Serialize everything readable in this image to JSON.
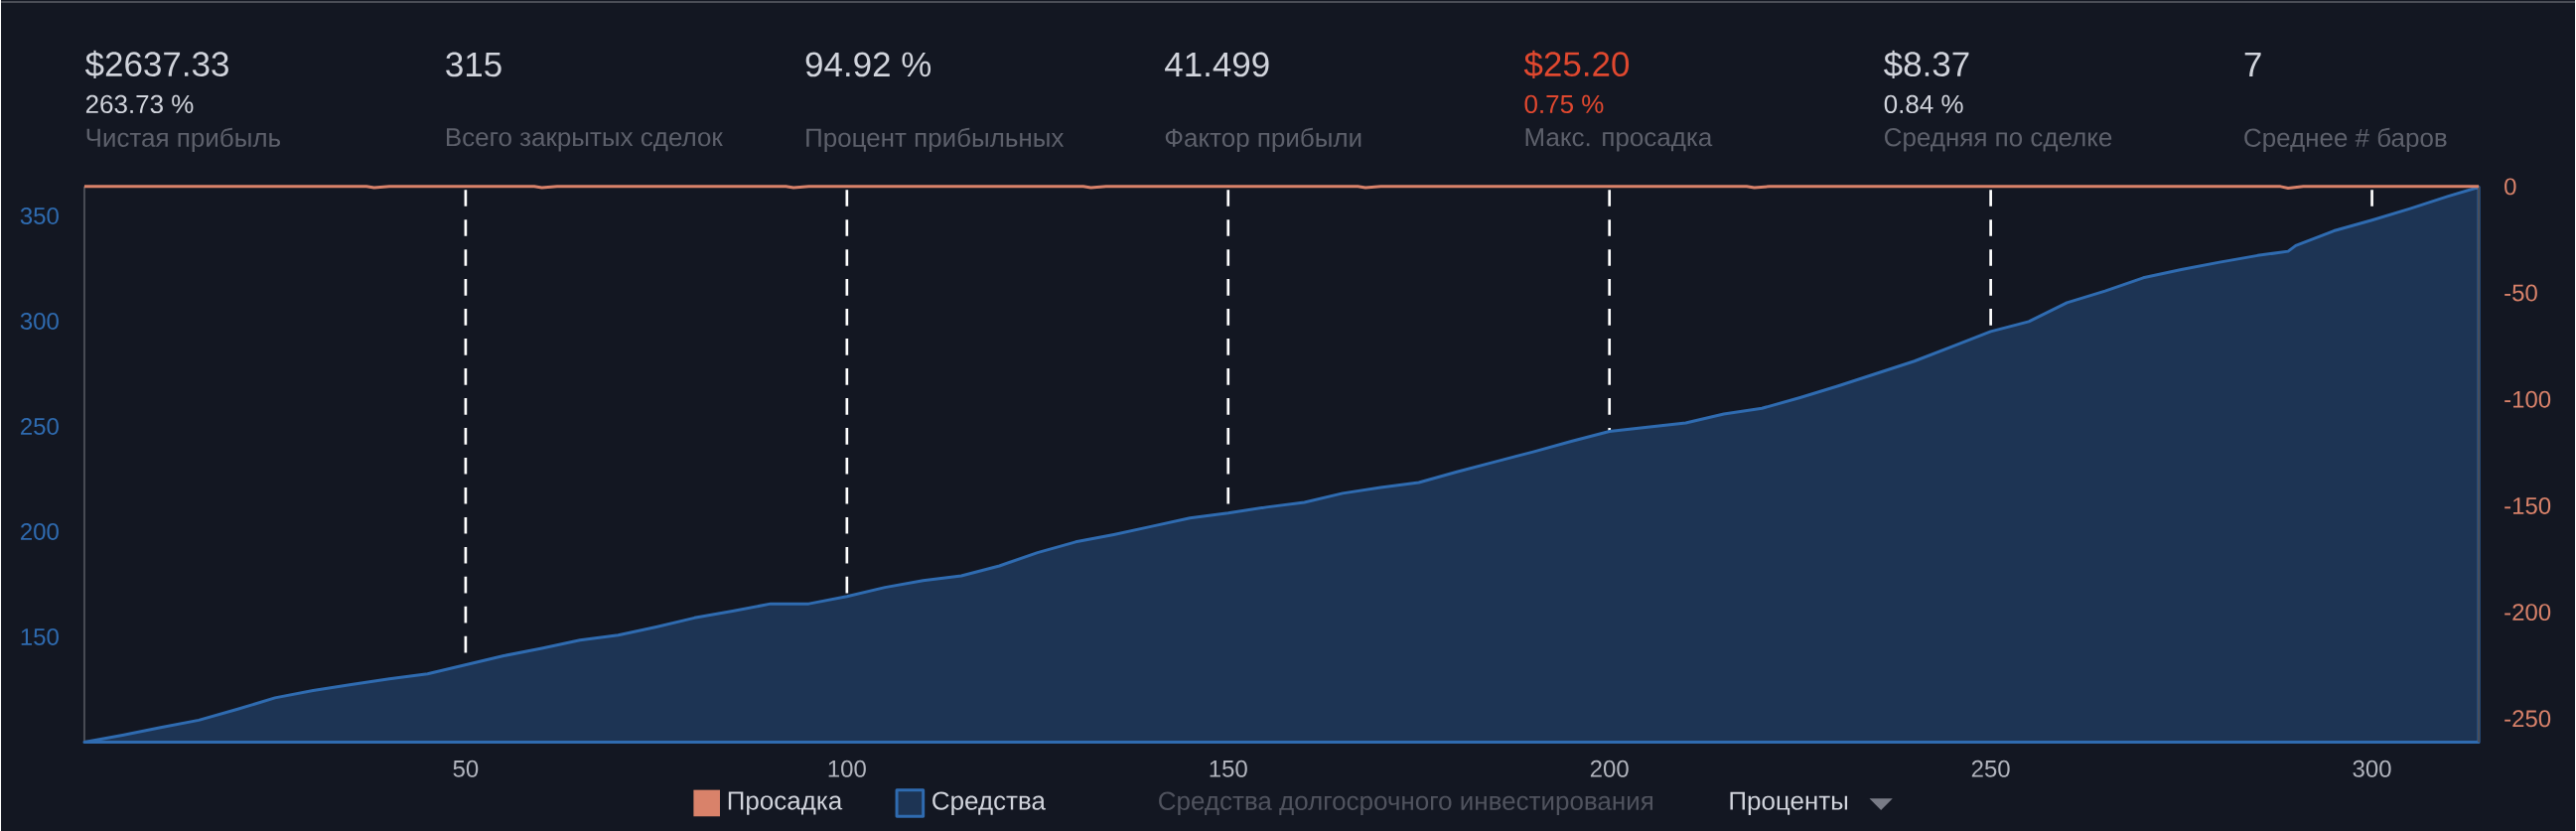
{
  "chart_data": [
    {
      "type": "other",
      "categories": [
        "Чистая прибыль",
        "Всего закрытых сделок",
        "Процент прибыльных",
        "Фактор прибыли",
        "Макс. просадка",
        "Средняя по сделке",
        "Среднее # баров"
      ],
      "series": [
        {
          "values": [
            2637.33,
            315,
            94.92,
            41.499,
            25.2,
            8.37,
            7
          ],
          "value_labels": [
            "$2637.33",
            "315",
            "94.92 %",
            "41.499",
            "$25.20",
            "$8.37",
            "7"
          ],
          "colors": [
            "#d1d4dc",
            "#d1d4dc",
            "#d1d4dc",
            "#d1d4dc",
            "#e0482f",
            "#d1d4dc",
            "#d1d4dc"
          ]
        },
        {
          "values": [
            263.73,
            null,
            null,
            null,
            0.75,
            0.84,
            null
          ],
          "value_labels": [
            "263.73 %",
            null,
            null,
            null,
            "0.75 %",
            "0.84 %",
            null
          ],
          "colors": [
            "#d1d4dc",
            null,
            null,
            null,
            "#e0482f",
            "#d1d4dc",
            null
          ]
        }
      ]
    },
    {
      "type": "area",
      "xlim": [
        0,
        314
      ],
      "xticks": [
        50,
        100,
        150,
        200,
        250,
        300
      ],
      "ylim": [
        100,
        364
      ],
      "yticks": [
        150,
        200,
        250,
        300,
        350
      ],
      "y2lim": [
        -261,
        0
      ],
      "y2ticks": [
        0,
        -50,
        -100,
        -150,
        -200,
        -250
      ],
      "grid": "x",
      "legend": "bottom",
      "annotations": [
        "Средства долгосрочного инвестирования",
        "Проценты"
      ],
      "series": [
        {
          "name": "Просадка",
          "type": "line",
          "axis": "y2",
          "color": "#d9826a",
          "x": [
            0,
            37,
            38,
            40,
            59,
            60,
            62,
            92,
            93,
            95,
            131,
            132,
            134,
            167,
            168,
            170,
            218,
            219,
            221,
            288,
            289,
            291,
            314
          ],
          "values": [
            0,
            0,
            -0.5,
            0,
            0,
            -0.5,
            0,
            0,
            -0.5,
            0,
            0,
            -0.5,
            0,
            0,
            -0.5,
            0,
            0,
            -0.5,
            0,
            0,
            -0.75,
            0,
            0
          ]
        },
        {
          "name": "Средства",
          "type": "area",
          "color": "#2f6bb0",
          "x": [
            0,
            5,
            10,
            15,
            20,
            25,
            30,
            35,
            40,
            45,
            50,
            55,
            60,
            65,
            70,
            75,
            80,
            85,
            90,
            95,
            100,
            105,
            110,
            115,
            120,
            125,
            130,
            135,
            140,
            145,
            150,
            155,
            160,
            165,
            170,
            175,
            180,
            185,
            190,
            195,
            200,
            205,
            210,
            215,
            220,
            225,
            230,
            235,
            240,
            245,
            250,
            255,
            260,
            265,
            270,
            275,
            280,
            285,
            289,
            290,
            295,
            300,
            305,
            310,
            314
          ],
          "values": [
            100,
            103.3,
            106.9,
            110.4,
            115.5,
            121,
            124.5,
            127.3,
            130,
            132.4,
            136.7,
            141,
            144.5,
            148.4,
            150.8,
            154.7,
            159,
            162.2,
            165.7,
            165.7,
            169.2,
            173.5,
            176.7,
            179,
            183.7,
            190,
            195.1,
            198.6,
            202.5,
            206.5,
            208.8,
            211.6,
            213.9,
            218.2,
            221,
            223.3,
            228.4,
            233.2,
            237.9,
            242.9,
            247.6,
            249.6,
            251.6,
            255.9,
            258.6,
            263.7,
            269.2,
            275.1,
            281,
            288,
            295.1,
            299.8,
            308.8,
            314.3,
            320.6,
            324.5,
            328,
            331.2,
            333.2,
            335.9,
            342.9,
            348,
            353.5,
            359.4,
            363.7
          ]
        }
      ]
    }
  ]
}
